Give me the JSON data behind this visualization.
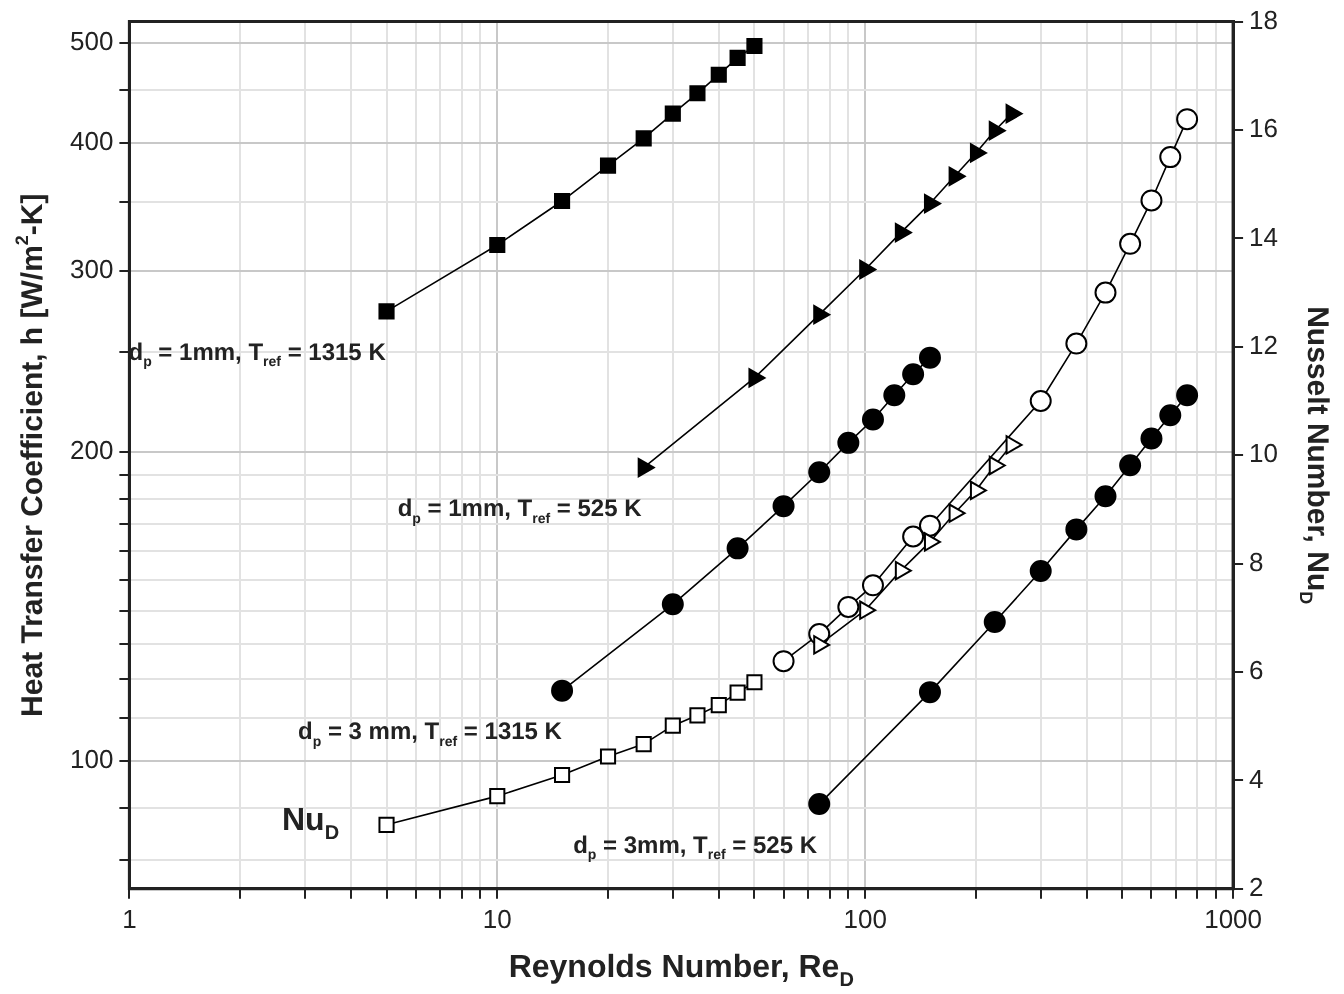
{
  "chart_data": {
    "type": "line",
    "xlabel": "Reynolds Number, Re$_{D}$",
    "ylabel": "Heat Transfer Coefficient, h [W/m$^{2}$-K]",
    "y2label": "Nusselt Number, Nu$_{D}$",
    "log": "xy",
    "grid": true,
    "legend": false,
    "xlim": [
      1,
      1000
    ],
    "xticks": [
      1,
      {
        "value": 2,
        "label": null
      },
      {
        "value": 3,
        "label": null
      },
      {
        "value": 4,
        "label": null
      },
      {
        "value": 5,
        "label": null
      },
      {
        "value": 6,
        "label": null
      },
      {
        "value": 7,
        "label": null
      },
      {
        "value": 8,
        "label": null
      },
      {
        "value": 9,
        "label": null
      },
      10,
      {
        "value": 20,
        "label": null
      },
      {
        "value": 30,
        "label": null
      },
      {
        "value": 40,
        "label": null
      },
      {
        "value": 50,
        "label": null
      },
      {
        "value": 60,
        "label": null
      },
      {
        "value": 70,
        "label": null
      },
      {
        "value": 80,
        "label": null
      },
      {
        "value": 90,
        "label": null
      },
      100,
      {
        "value": 200,
        "label": null
      },
      {
        "value": 300,
        "label": null
      },
      {
        "value": 400,
        "label": null
      },
      {
        "value": 500,
        "label": null
      },
      {
        "value": 600,
        "label": null
      },
      {
        "value": 700,
        "label": null
      },
      {
        "value": 800,
        "label": null
      },
      {
        "value": 900,
        "label": null
      },
      1000
    ],
    "ylim": [
      75,
      525
    ],
    "yticks": [
      {
        "value": 80,
        "label": null
      },
      {
        "value": 90,
        "label": null
      },
      100,
      {
        "value": 110,
        "label": null
      },
      {
        "value": 120,
        "label": null
      },
      {
        "value": 130,
        "label": null
      },
      {
        "value": 140,
        "label": null
      },
      {
        "value": 150,
        "label": null
      },
      {
        "value": 160,
        "label": null
      },
      {
        "value": 170,
        "label": null
      },
      {
        "value": 180,
        "label": null
      },
      {
        "value": 190,
        "label": null
      },
      200,
      {
        "value": 250,
        "label": null
      },
      300,
      {
        "value": 350,
        "label": null
      },
      400,
      {
        "value": 450,
        "label": null
      },
      500
    ],
    "y2lim": [
      2,
      18
    ],
    "y2ticks": [
      2,
      4,
      6,
      8,
      10,
      12,
      14,
      16,
      18
    ],
    "series": [
      {
        "name": "d$_{p}$ = 1mm, T$_{ref}$ = 1315 K",
        "color": "#000000",
        "marker": "square",
        "x": [
          5,
          10,
          15,
          20,
          25,
          30,
          35,
          40,
          45,
          50
        ],
        "values": [
          274,
          318,
          351,
          380,
          404,
          427,
          447,
          466,
          484,
          497
        ]
      },
      {
        "name": "d$_{p}$ = 1mm, T$_{ref}$ = 525 K",
        "color": "#000000",
        "marker": "triangle",
        "x": [
          25,
          50,
          75,
          100,
          125,
          150,
          175,
          200,
          225,
          250
        ],
        "values": [
          193,
          236,
          272,
          301,
          327,
          349,
          371,
          391,
          411,
          427
        ]
      },
      {
        "name": "d$_{p}$ = 3 mm, T$_{ref}$ = 1315 K",
        "color": "#000000",
        "marker": "circle",
        "x": [
          15,
          30,
          45,
          60,
          75,
          90,
          105,
          120,
          135,
          150
        ],
        "values": [
          117,
          142,
          161,
          177,
          191,
          204,
          215,
          227,
          238,
          247
        ]
      },
      {
        "name": "d$_{p}$ = 3mm, T$_{ref}$ = 525 K",
        "color": "#000000",
        "marker": "circle",
        "x": [
          75,
          150,
          225,
          300,
          375,
          450,
          525,
          600,
          675,
          750
        ],
        "values": [
          90.7,
          116.6,
          136.5,
          153,
          168,
          181,
          194,
          206,
          217,
          227
        ]
      },
      {
        "name": "Nu$_{D}$",
        "color": "#000000",
        "marker": "square",
        "axis": "y2",
        "x": [
          5,
          10,
          15,
          20,
          25,
          30,
          35,
          40,
          45,
          50
        ],
        "values": [
          3.18,
          3.71,
          4.1,
          4.44,
          4.67,
          5.01,
          5.2,
          5.39,
          5.62,
          5.81
        ]
      },
      {
        "color": "#000000",
        "marker": "triangle",
        "axis": "y2",
        "x": [
          75,
          100,
          125,
          150,
          175,
          200,
          225,
          250
        ],
        "values": [
          6.5,
          7.14,
          7.87,
          8.4,
          8.93,
          9.35,
          9.81,
          10.19
        ]
      },
      {
        "color": "#000000",
        "marker": "circle",
        "axis": "y2",
        "x": [
          60,
          75,
          90,
          105,
          135,
          150,
          300,
          375,
          450,
          525,
          600,
          675,
          750
        ],
        "values": [
          6.2,
          6.7,
          7.2,
          7.6,
          8.5,
          8.7,
          11.0,
          12.06,
          13.0,
          13.9,
          14.7,
          15.5,
          16.2
        ]
      }
    ]
  }
}
